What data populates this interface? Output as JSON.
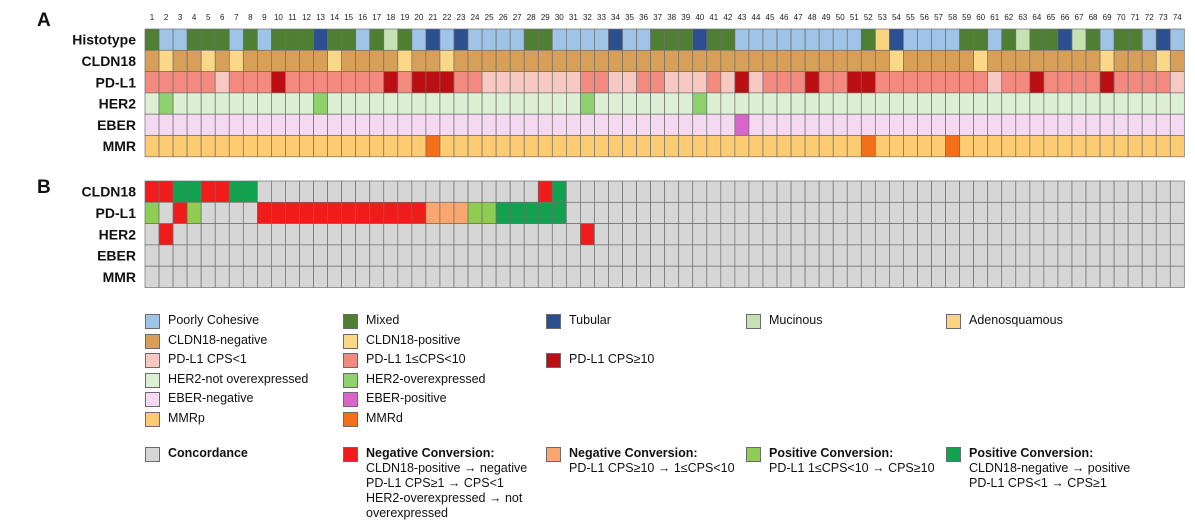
{
  "panels": {
    "a": "A",
    "b": "B"
  },
  "colors": {
    "poorly_cohesive": "#9fc4e8",
    "mixed": "#4e7f33",
    "tubular": "#2c4f92",
    "mucinous": "#c6e2b4",
    "adenosquamous": "#fad47e",
    "cldn18_neg": "#d89f58",
    "cldn18_pos": "#fad888",
    "pdl1_lt1": "#f8c9c2",
    "pdl1_1to10": "#f28a80",
    "pdl1_ge10": "#bb0f13",
    "her2_not": "#ddf0d4",
    "her2_over": "#8fd16d",
    "eber_neg": "#f5d9f1",
    "eber_pos": "#d865c9",
    "mmrp": "#fccb72",
    "mmrd": "#f46f1a",
    "concordance": "#d6d6d6",
    "neg_conv": "#f01c1c",
    "neg_conv_pdl1": "#f9a670",
    "pos_conv_pdl1": "#8fcd52",
    "pos_conv": "#12a24f"
  },
  "chart_data": [
    {
      "type": "heatmap",
      "panel": "A",
      "columns": [
        1,
        2,
        3,
        4,
        5,
        6,
        7,
        8,
        9,
        10,
        11,
        12,
        13,
        14,
        15,
        16,
        17,
        18,
        19,
        20,
        21,
        22,
        23,
        24,
        25,
        26,
        27,
        28,
        29,
        30,
        31,
        32,
        33,
        34,
        35,
        36,
        37,
        38,
        39,
        40,
        41,
        42,
        43,
        44,
        45,
        46,
        47,
        48,
        49,
        50,
        51,
        52,
        53,
        54,
        55,
        56,
        57,
        58,
        59,
        60,
        61,
        62,
        63,
        64,
        65,
        66,
        67,
        68,
        69,
        70,
        71,
        72,
        73,
        74
      ],
      "rows": [
        "Histotype",
        "CLDN18",
        "PD-L1",
        "HER2",
        "EBER",
        "MMR"
      ],
      "codes": {
        "Histotype": {
          "P": "poorly_cohesive",
          "M": "mixed",
          "T": "tubular",
          "U": "mucinous",
          "A": "adenosquamous"
        },
        "CLDN18": {
          "N": "cldn18_neg",
          "Y": "cldn18_pos"
        },
        "PD-L1": {
          "L": "pdl1_lt1",
          "M": "pdl1_1to10",
          "H": "pdl1_ge10"
        },
        "HER2": {
          "N": "her2_not",
          "Y": "her2_over"
        },
        "EBER": {
          "N": "eber_neg",
          "Y": "eber_pos"
        },
        "MMR": {
          "P": "mmrp",
          "D": "mmrd"
        }
      },
      "values": {
        "Histotype": "MPPMMMPMPMMMTMMPMUMPTPTPPPPMMPPPPTPPMMMTMMPPPPPPPPPMATPPPPMMPMUMMTUMPMMPTP",
        "CLDN18": "NYNNYNYNNNNNNYNNNNYNNYNNNNNNNNNNNNNNNNNNNNNNNNNNNNNNNYNNNNNYNNNNNNNNYNNNYN",
        "PD-L1": "MMMMMLMMMHMMMMMMMHMHHHMMLLLLLLLMMLLMMLLLMLHLMMMHMMHHMMMMMMMMLMMHMMMMHMMMML",
        "HER2": "NYNNNNNNNNNNYNNNNNNNNNNNNNNNNNNYNNNNNNNYNNNNNNNNNNNNNNNNNNNNNNNNNNNNNNNNNN",
        "EBER": "NNNNNNNNNNNNNNNNNNNNNNNNNNNNNNNNNNNNNNNNNNYNNNNNNNNNNNNNNNNNNNNNNNNNNNNNNN",
        "MMR": "PPPPPPPPPPPPPPPPPPPPDPPPPPPPPPPPPPPPPPPPPPPPPPPPPPPDPPPPPDPPPPPPPPPPPPPPPP"
      }
    },
    {
      "type": "heatmap",
      "panel": "B",
      "rows": [
        "CLDN18",
        "PD-L1",
        "HER2",
        "EBER",
        "MMR"
      ],
      "codes": {
        "C": "concordance",
        "R": "neg_conv",
        "O": "neg_conv_pdl1",
        "L": "pos_conv_pdl1",
        "G": "pos_conv"
      },
      "values": {
        "CLDN18": "RRGGRRGGCCCCCCCCCCCCCCCCCCCCRGCCCCCCCCCCCCCCCCCCCCCCCCCCCCCCCCCCCCCCCCCCCC",
        "PD-L1": "LCRLCCCCRRRRRRRRRRRROOOLLGGGGGCCCCCCCCCCCCCCCCCCCCCCCCCCCCCCCCCCCCCCCCCCCC",
        "HER2": "CRCCCCCCCCCCCCCCCCCCCCCCCCCCCCCRCCCCCCCCCCCCCCCCCCCCCCCCCCCCCCCCCCCCCCCCCC",
        "EBER": "CCCCCCCCCCCCCCCCCCCCCCCCCCCCCCCCCCCCCCCCCCCCCCCCCCCCCCCCCCCCCCCCCCCCCCCCCC",
        "MMR": "CCCCCCCCCCCCCCCCCCCCCCCCCCCCCCCCCCCCCCCCCCCCCCCCCCCCCCCCCCCCCCCCCCCCCCCCCC"
      }
    }
  ],
  "legend": {
    "r1": [
      {
        "label": "Poorly Cohesive",
        "color": "poorly_cohesive"
      },
      {
        "label": "Mixed",
        "color": "mixed"
      },
      {
        "label": "Tubular",
        "color": "tubular"
      },
      {
        "label": "Mucinous",
        "color": "mucinous"
      },
      {
        "label": "Adenosquamous",
        "color": "adenosquamous"
      }
    ],
    "r2": [
      {
        "label": "CLDN18-negative",
        "color": "cldn18_neg"
      },
      {
        "label": "CLDN18-positive",
        "color": "cldn18_pos"
      }
    ],
    "r3": [
      {
        "label": "PD-L1 CPS<1",
        "color": "pdl1_lt1"
      },
      {
        "label": "PD-L1 1≤CPS<10",
        "color": "pdl1_1to10"
      },
      {
        "label": "PD-L1 CPS≥10",
        "color": "pdl1_ge10"
      }
    ],
    "r4": [
      {
        "label": "HER2-not overexpressed",
        "color": "her2_not"
      },
      {
        "label": "HER2-overexpressed",
        "color": "her2_over"
      }
    ],
    "r5": [
      {
        "label": "EBER-negative",
        "color": "eber_neg"
      },
      {
        "label": "EBER-positive",
        "color": "eber_pos"
      }
    ],
    "r6": [
      {
        "label": "MMRp",
        "color": "mmrp"
      },
      {
        "label": "MMRd",
        "color": "mmrd"
      }
    ],
    "conv": [
      {
        "title": "Concordance",
        "color": "concordance",
        "lines": []
      },
      {
        "title": "Negative Conversion:",
        "color": "neg_conv",
        "lines": [
          "CLDN18-positive → negative",
          "PD-L1 CPS≥1 → CPS<1",
          "HER2-overexpressed → not",
          "overexpressed"
        ]
      },
      {
        "title": "Negative Conversion:",
        "color": "neg_conv_pdl1",
        "lines": [
          "PD-L1 CPS≥10 → 1≤CPS<10"
        ]
      },
      {
        "title": "Positive Conversion:",
        "color": "pos_conv_pdl1",
        "lines": [
          "PD-L1 1≤CPS<10 → CPS≥10"
        ]
      },
      {
        "title": "Positive Conversion:",
        "color": "pos_conv",
        "lines": [
          "CLDN18-negative → positive",
          "PD-L1 CPS<1 → CPS≥1"
        ]
      }
    ]
  }
}
